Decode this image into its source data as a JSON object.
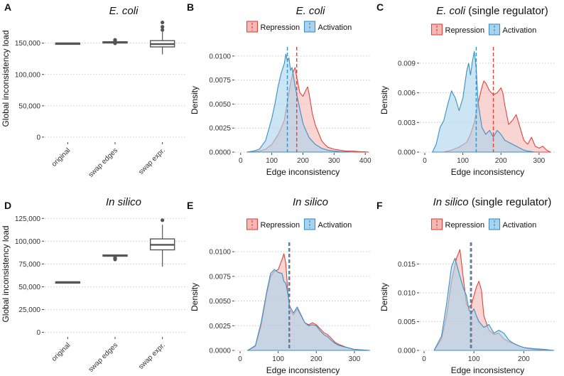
{
  "figure_title": "Figure: global and edge inconsistency distributions",
  "colors": {
    "repression": "#e0443e",
    "repression_fill": "#f4b9b5",
    "activation": "#3b8fc4",
    "activation_fill": "#a9d3ec",
    "box_line": "#555555",
    "grid": "#c8c8c8",
    "axis_text": "#333333"
  },
  "legend": {
    "repression": "Repression",
    "activation": "Activation"
  },
  "chart_data": [
    {
      "id": "A",
      "panel_label": "A",
      "type": "box",
      "title": "E. coli",
      "title_italic": "E. coli",
      "title_rest": "",
      "ylabel": "Global inconsistency load",
      "ylim": [
        -8000,
        195000
      ],
      "yticks": [
        0,
        50000,
        100000,
        150000
      ],
      "ytick_labels": [
        "0",
        "50,000",
        "100,000",
        "150,000"
      ],
      "categories": [
        "original",
        "swap edges",
        "swap expr."
      ],
      "boxes": [
        {
          "q1": 149300,
          "median": 149700,
          "q3": 150100,
          "whisker_low": 148900,
          "whisker_high": 150500,
          "outliers": []
        },
        {
          "q1": 151000,
          "median": 151600,
          "q3": 152200,
          "whisker_low": 150300,
          "whisker_high": 153000,
          "outliers": [
            154500,
            149800,
            155200
          ]
        },
        {
          "q1": 144000,
          "median": 148500,
          "q3": 154000,
          "whisker_low": 132000,
          "whisker_high": 168000,
          "outliers": [
            171000,
            176000,
            183000
          ]
        }
      ]
    },
    {
      "id": "B",
      "panel_label": "B",
      "type": "density",
      "title": "E. coli",
      "title_italic": "E. coli",
      "title_rest": "",
      "xlabel": "Edge inconsistency",
      "ylabel": "Density",
      "xlim": [
        -20,
        420
      ],
      "ylim": [
        0,
        0.0108
      ],
      "xticks": [
        0,
        100,
        200,
        300,
        400
      ],
      "xtick_labels": [
        "0",
        "100",
        "200",
        "300",
        "400"
      ],
      "yticks": [
        0,
        0.0025,
        0.005,
        0.0075,
        0.01
      ],
      "ytick_labels": [
        "0.0000",
        "0.0025",
        "0.0050",
        "0.0075",
        "0.0100"
      ],
      "series": [
        {
          "name": "Repression",
          "mean": 180,
          "x": [
            20,
            40,
            60,
            80,
            100,
            120,
            130,
            140,
            150,
            160,
            170,
            175,
            180,
            190,
            200,
            210,
            215,
            220,
            230,
            240,
            250,
            260,
            270,
            280,
            300,
            320,
            340,
            360,
            380,
            400,
            410
          ],
          "y": [
            0,
            5e-05,
            0.0001,
            0.0003,
            0.0008,
            0.0018,
            0.0025,
            0.0033,
            0.0052,
            0.0072,
            0.0085,
            0.0088,
            0.0078,
            0.0062,
            0.0058,
            0.0065,
            0.0068,
            0.006,
            0.004,
            0.0028,
            0.002,
            0.0012,
            0.0008,
            0.0005,
            0.0003,
            0.0002,
            0.0001,
            0.0001,
            5e-05,
            3e-05,
            0
          ]
        },
        {
          "name": "Activation",
          "mean": 150,
          "x": [
            20,
            40,
            60,
            80,
            100,
            110,
            120,
            130,
            140,
            145,
            150,
            155,
            160,
            165,
            170,
            180,
            190,
            200,
            210,
            220,
            240,
            260,
            280,
            300,
            320,
            340,
            360
          ],
          "y": [
            0,
            0.0001,
            0.0003,
            0.0012,
            0.0035,
            0.005,
            0.0068,
            0.0082,
            0.0092,
            0.0102,
            0.0095,
            0.0098,
            0.0085,
            0.0088,
            0.0078,
            0.006,
            0.0045,
            0.003,
            0.0022,
            0.0015,
            0.0008,
            0.0004,
            0.0002,
            0.0001,
            5e-05,
            3e-05,
            0
          ]
        }
      ]
    },
    {
      "id": "C",
      "panel_label": "C",
      "type": "density",
      "title": "E. coli (single regulator)",
      "title_italic": "E. coli",
      "title_rest": " (single regulator)",
      "xlabel": "Edge inconsistency",
      "ylabel": "Density",
      "xlim": [
        -15,
        345
      ],
      "ylim": [
        0,
        0.0105
      ],
      "xticks": [
        0,
        100,
        200,
        300
      ],
      "xtick_labels": [
        "0",
        "100",
        "200",
        "300"
      ],
      "yticks": [
        0,
        0.003,
        0.006,
        0.009
      ],
      "ytick_labels": [
        "0.000",
        "0.003",
        "0.006",
        "0.009"
      ],
      "series": [
        {
          "name": "Repression",
          "mean": 180,
          "x": [
            50,
            70,
            90,
            110,
            120,
            130,
            140,
            150,
            155,
            160,
            170,
            180,
            190,
            200,
            205,
            210,
            220,
            230,
            240,
            250,
            260,
            270,
            280,
            290,
            300,
            310,
            320,
            330
          ],
          "y": [
            0,
            0.0002,
            0.0005,
            0.001,
            0.0018,
            0.003,
            0.005,
            0.0066,
            0.0072,
            0.007,
            0.0062,
            0.0058,
            0.006,
            0.0065,
            0.006,
            0.0048,
            0.0028,
            0.0032,
            0.0038,
            0.0025,
            0.0012,
            0.0008,
            0.0015,
            0.0006,
            0.0004,
            0.0006,
            0.0002,
            0
          ]
        },
        {
          "name": "Activation",
          "mean": 135,
          "x": [
            20,
            30,
            40,
            50,
            60,
            70,
            80,
            90,
            100,
            110,
            115,
            120,
            125,
            130,
            135,
            140,
            150,
            160,
            170,
            180,
            190,
            200,
            210,
            220,
            230,
            240,
            250,
            260,
            270,
            280,
            290
          ],
          "y": [
            0,
            0.0008,
            0.0025,
            0.0032,
            0.0048,
            0.0062,
            0.0055,
            0.0042,
            0.0055,
            0.0082,
            0.009,
            0.0078,
            0.0092,
            0.0102,
            0.0085,
            0.005,
            0.0025,
            0.0018,
            0.0022,
            0.0015,
            0.0022,
            0.0018,
            0.0012,
            0.001,
            0.0008,
            0.0006,
            0.0004,
            0.0002,
            0.0001,
            5e-05,
            0
          ]
        }
      ]
    },
    {
      "id": "D",
      "panel_label": "D",
      "type": "box",
      "title": "In silico",
      "title_italic": "In silico",
      "title_rest": "",
      "ylabel": "Global inconsistency load",
      "ylim": [
        -5000,
        133000
      ],
      "yticks": [
        0,
        25000,
        50000,
        75000,
        100000,
        125000
      ],
      "ytick_labels": [
        "0",
        "25,000",
        "50,000",
        "75,000",
        "100,000",
        "125,000"
      ],
      "categories": [
        "original",
        "swap edges",
        "swap expr."
      ],
      "boxes": [
        {
          "q1": 54800,
          "median": 55100,
          "q3": 55400,
          "whisker_low": 54600,
          "whisker_high": 55600,
          "outliers": []
        },
        {
          "q1": 83800,
          "median": 84300,
          "q3": 84900,
          "whisker_low": 82800,
          "whisker_high": 85600,
          "outliers": [
            81000,
            80000,
            82000
          ]
        },
        {
          "q1": 90500,
          "median": 96000,
          "q3": 102500,
          "whisker_low": 72000,
          "whisker_high": 118000,
          "outliers": [
            123000
          ]
        }
      ]
    },
    {
      "id": "E",
      "panel_label": "E",
      "type": "density",
      "title": "In silico",
      "title_italic": "In silico",
      "title_rest": "",
      "xlabel": "Edge inconsistency",
      "ylabel": "Density",
      "xlim": [
        -15,
        345
      ],
      "ylim": [
        0,
        0.0108
      ],
      "xticks": [
        0,
        100,
        200,
        300
      ],
      "xtick_labels": [
        "0",
        "100",
        "200",
        "300"
      ],
      "yticks": [
        0,
        0.0025,
        0.005,
        0.0075,
        0.01
      ],
      "ytick_labels": [
        "0.0000",
        "0.0025",
        "0.0050",
        "0.0075",
        "0.0100"
      ],
      "series": [
        {
          "name": "Repression",
          "mean": 130,
          "x": [
            20,
            40,
            55,
            70,
            80,
            90,
            100,
            110,
            115,
            120,
            125,
            130,
            140,
            150,
            160,
            170,
            180,
            190,
            200,
            210,
            220,
            230,
            240,
            250,
            260,
            280,
            300,
            320,
            340
          ],
          "y": [
            0,
            0.0004,
            0.0025,
            0.0058,
            0.0075,
            0.008,
            0.0082,
            0.0092,
            0.0098,
            0.0088,
            0.006,
            0.0042,
            0.0036,
            0.0042,
            0.0035,
            0.0028,
            0.0026,
            0.0028,
            0.0026,
            0.0022,
            0.0018,
            0.0016,
            0.0012,
            0.0008,
            0.0006,
            0.0003,
            0.0001,
            5e-05,
            0
          ]
        },
        {
          "name": "Activation",
          "mean": 128,
          "x": [
            20,
            40,
            55,
            70,
            80,
            90,
            100,
            110,
            115,
            120,
            125,
            130,
            140,
            150,
            160,
            170,
            180,
            190,
            200,
            210,
            220,
            230,
            240,
            250,
            260,
            280,
            300,
            320,
            340
          ],
          "y": [
            0,
            0.0005,
            0.0028,
            0.006,
            0.0078,
            0.0082,
            0.0079,
            0.0078,
            0.007,
            0.0068,
            0.0058,
            0.0045,
            0.0038,
            0.0044,
            0.0036,
            0.0028,
            0.0025,
            0.0026,
            0.0025,
            0.002,
            0.0016,
            0.0014,
            0.001,
            0.0007,
            0.0005,
            0.0003,
            0.0001,
            5e-05,
            0
          ]
        }
      ]
    },
    {
      "id": "F",
      "panel_label": "F",
      "type": "density",
      "title": "In silico (single regulator)",
      "title_italic": "In silico",
      "title_rest": " (single regulator)",
      "xlabel": "Edge inconsistency",
      "ylabel": "Density",
      "xlim": [
        -10,
        265
      ],
      "ylim": [
        0,
        0.0185
      ],
      "xticks": [
        0,
        100,
        200
      ],
      "xtick_labels": [
        "0",
        "100",
        "200"
      ],
      "yticks": [
        0,
        0.005,
        0.01,
        0.015
      ],
      "ytick_labels": [
        "0.000",
        "0.005",
        "0.010",
        "0.015"
      ],
      "series": [
        {
          "name": "Repression",
          "mean": 95,
          "x": [
            20,
            35,
            45,
            55,
            65,
            72,
            78,
            85,
            90,
            95,
            100,
            105,
            110,
            115,
            120,
            130,
            140,
            150,
            160,
            170,
            180,
            190,
            200,
            220,
            240,
            260
          ],
          "y": [
            0,
            0.002,
            0.006,
            0.012,
            0.016,
            0.0175,
            0.013,
            0.008,
            0.0075,
            0.008,
            0.0095,
            0.011,
            0.012,
            0.0105,
            0.006,
            0.0035,
            0.0028,
            0.003,
            0.002,
            0.0015,
            0.0012,
            0.0008,
            0.0005,
            0.0002,
            0.0001,
            0
          ]
        },
        {
          "name": "Activation",
          "mean": 93,
          "x": [
            20,
            35,
            45,
            55,
            62,
            70,
            78,
            85,
            90,
            95,
            100,
            105,
            110,
            115,
            120,
            130,
            140,
            150,
            160,
            170,
            180,
            190,
            200,
            220,
            240,
            260
          ],
          "y": [
            0,
            0.0025,
            0.008,
            0.0145,
            0.016,
            0.0135,
            0.011,
            0.0095,
            0.007,
            0.0065,
            0.0072,
            0.006,
            0.005,
            0.0045,
            0.004,
            0.0045,
            0.003,
            0.0035,
            0.003,
            0.0018,
            0.0012,
            0.0008,
            0.0005,
            0.0003,
            0.0002,
            0
          ]
        }
      ]
    }
  ]
}
